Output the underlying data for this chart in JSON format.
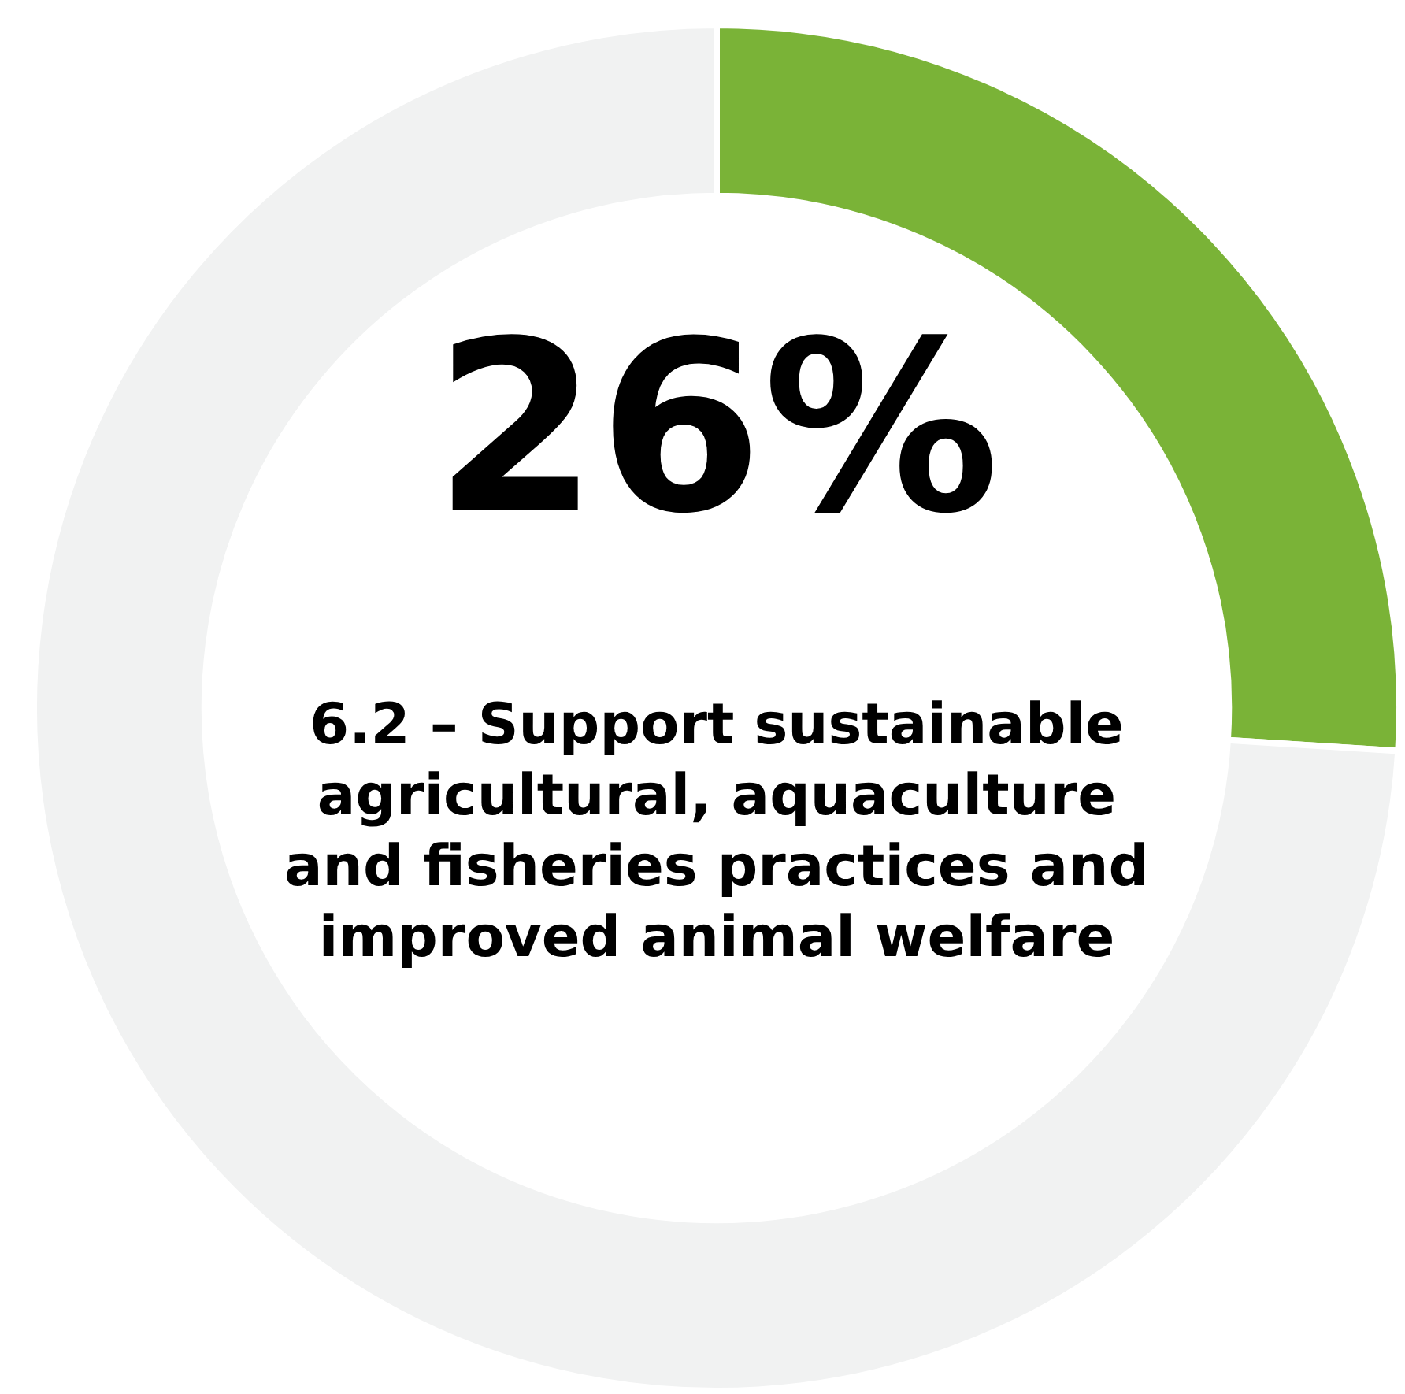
{
  "chart_data": {
    "type": "donut",
    "title": "6.2 – Support sustainable agricultural, aquaculture and fisheries practices and improved animal welfare",
    "categories": [
      null,
      null
    ],
    "values": [
      26,
      74
    ],
    "colors": [
      "#7ab337",
      "#f1f2f2"
    ],
    "value_labels": [
      "26%",
      null
    ]
  }
}
